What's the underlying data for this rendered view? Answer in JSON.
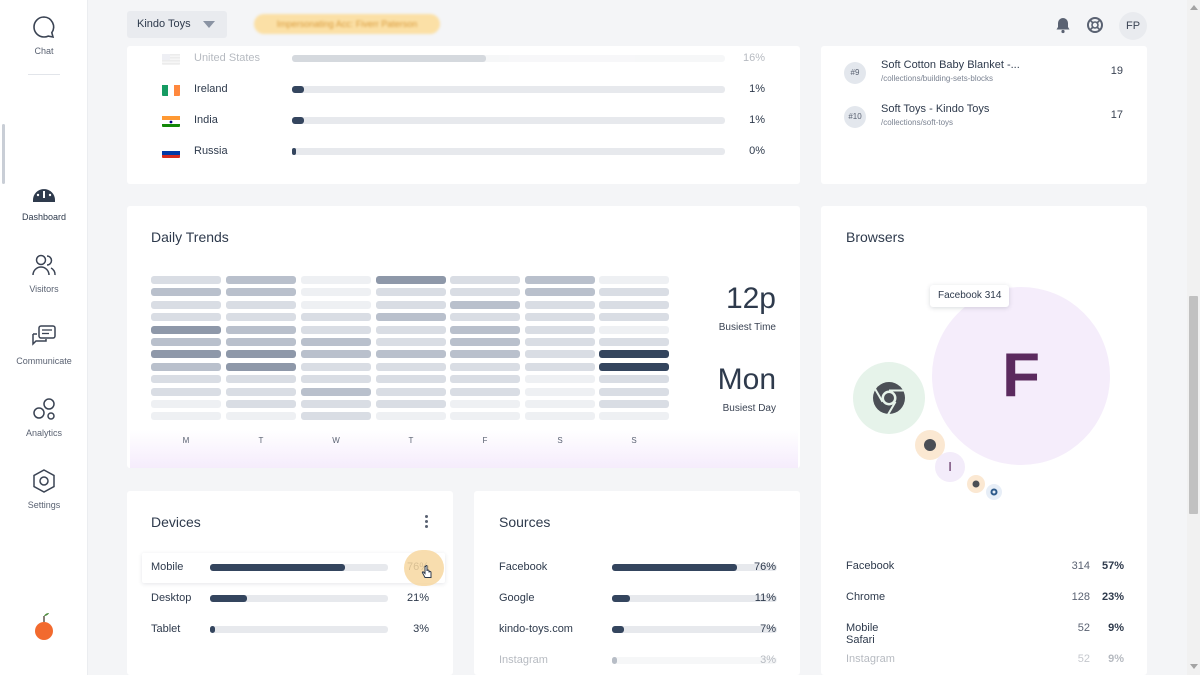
{
  "sidebar": {
    "items": [
      {
        "label": "Chat",
        "icon": "chat-icon"
      },
      {
        "label": "Dashboard",
        "icon": "dashboard-icon"
      },
      {
        "label": "Visitors",
        "icon": "visitors-icon"
      },
      {
        "label": "Communicate",
        "icon": "communicate-icon"
      },
      {
        "label": "Analytics",
        "icon": "analytics-icon"
      },
      {
        "label": "Settings",
        "icon": "settings-icon"
      }
    ],
    "active": "Dashboard"
  },
  "topbar": {
    "store_name": "Kindo Toys",
    "impersonating_text": "Impersonating Acc: Fiverr Paterson",
    "avatar_initials": "FP"
  },
  "countries": [
    {
      "name": "United States",
      "percent": "16%",
      "share": 0.16,
      "faded": true
    },
    {
      "name": "Ireland",
      "percent": "1%",
      "share": 0.01
    },
    {
      "name": "India",
      "percent": "1%",
      "share": 0.01
    },
    {
      "name": "Russia",
      "percent": "0%",
      "share": 0.0
    }
  ],
  "top_pages": [
    {
      "rank": "#9",
      "title": "Soft Cotton Baby Blanket -...",
      "path": "/collections/building-sets-blocks",
      "count": "19"
    },
    {
      "rank": "#10",
      "title": "Soft Toys - Kindo Toys",
      "path": "/collections/soft-toys",
      "count": "17"
    }
  ],
  "daily_trends": {
    "title": "Daily Trends",
    "days": [
      "M",
      "T",
      "W",
      "T",
      "F",
      "S",
      "S"
    ],
    "busiest_time": "12p",
    "busiest_time_label": "Busiest Time",
    "busiest_day": "Mon",
    "busiest_day_label": "Busiest Day",
    "heatmap_levels": [
      [
        1,
        2,
        0,
        3,
        1,
        2,
        0
      ],
      [
        2,
        2,
        0,
        1,
        1,
        2,
        1
      ],
      [
        1,
        1,
        0,
        1,
        2,
        1,
        1
      ],
      [
        1,
        1,
        1,
        2,
        1,
        1,
        1
      ],
      [
        3,
        2,
        1,
        1,
        2,
        1,
        0
      ],
      [
        2,
        2,
        2,
        1,
        2,
        1,
        1
      ],
      [
        3,
        3,
        2,
        2,
        2,
        1,
        4
      ],
      [
        2,
        3,
        1,
        1,
        1,
        1,
        4
      ],
      [
        1,
        1,
        1,
        1,
        1,
        0,
        1
      ],
      [
        1,
        1,
        2,
        1,
        1,
        0,
        1
      ],
      [
        0,
        1,
        1,
        1,
        0,
        0,
        1
      ],
      [
        0,
        0,
        1,
        0,
        0,
        0,
        0
      ]
    ]
  },
  "devices": {
    "title": "Devices",
    "items": [
      {
        "label": "Mobile",
        "percent": "76%",
        "share": 0.76
      },
      {
        "label": "Desktop",
        "percent": "21%",
        "share": 0.21
      },
      {
        "label": "Tablet",
        "percent": "3%",
        "share": 0.03
      }
    ]
  },
  "sources": {
    "title": "Sources",
    "items": [
      {
        "label": "Facebook",
        "percent": "76%",
        "share": 0.76
      },
      {
        "label": "Google",
        "percent": "11%",
        "share": 0.11
      },
      {
        "label": "kindo-toys.com",
        "percent": "7%",
        "share": 0.07
      },
      {
        "label": "Instagram",
        "percent": "3%",
        "share": 0.03,
        "faded": true
      }
    ]
  },
  "browsers": {
    "title": "Browsers",
    "tooltip_name": "Facebook",
    "tooltip_count": "314",
    "main_bubble_letter": "F",
    "small_bubble_letter": "I",
    "items": [
      {
        "name": "Facebook",
        "count": "314",
        "percent": "57%"
      },
      {
        "name": "Chrome",
        "count": "128",
        "percent": "23%"
      },
      {
        "name": "Mobile Safari",
        "count": "52",
        "percent": "9%"
      },
      {
        "name": "Instagram",
        "count": "52",
        "percent": "9%",
        "faded": true
      }
    ]
  },
  "colors": {
    "accent": "#34455e",
    "facebook_bubble": "#f5edfb",
    "facebook_letter": "#5b2a5e",
    "chrome_bubble": "#e6f3ea",
    "logo": "#f26a2e"
  }
}
